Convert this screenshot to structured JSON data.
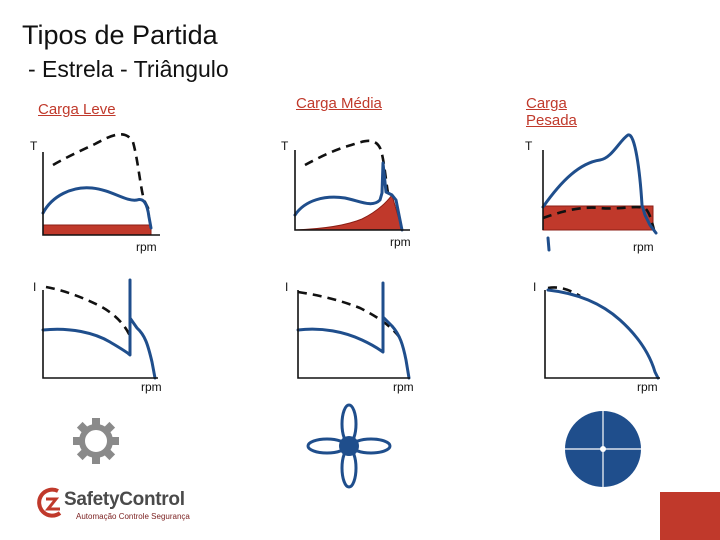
{
  "title": "Tipos de Partida",
  "subtitle": "- Estrela - Triângulo",
  "loads": [
    {
      "label_line1": "Carga Leve",
      "label_line2": ""
    },
    {
      "label_line1": "Carga Média",
      "label_line2": ""
    },
    {
      "label_line1": "Carga",
      "label_line2": "Pesada"
    }
  ],
  "axes": {
    "torque": "T",
    "current": "I",
    "speed": "rpm"
  },
  "logo": {
    "brand_part1": "Safety",
    "brand_part2": "Control",
    "tagline": "Automação Controle Segurança"
  },
  "icons": [
    "gear-icon",
    "fan-icon",
    "disc-icon",
    "logo-icon"
  ],
  "colors": {
    "curve": "#1f4e8c",
    "load_fill": "#c0392b",
    "label": "#c0392b",
    "accent_bar": "#c0392b"
  }
}
